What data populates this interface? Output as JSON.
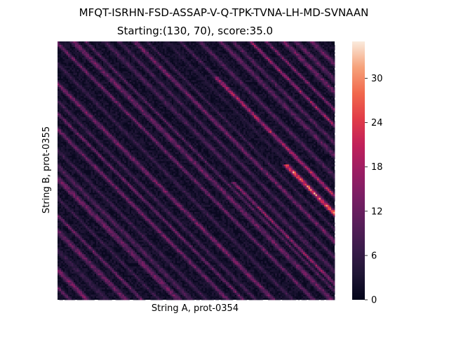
{
  "chart_data": {
    "type": "heatmap",
    "title": "MFQT-ISRHN-FSD-ASSAP-V-Q-TPK-TVNA-LH-MD-SVNAAN",
    "subtitle": "Starting:(130, 70), score:35.0",
    "xlabel": "String A, prot-0354",
    "ylabel": "String B, prot-0355",
    "x_ticks": [],
    "y_ticks": [],
    "colorbar": {
      "range": [
        0,
        35
      ],
      "ticks": [
        0,
        6,
        12,
        18,
        24,
        30
      ],
      "colormap": "rocket"
    },
    "grid": false,
    "data_note_values": {
      "max_score": 35.0,
      "start_cell": [
        130,
        70
      ]
    }
  }
}
